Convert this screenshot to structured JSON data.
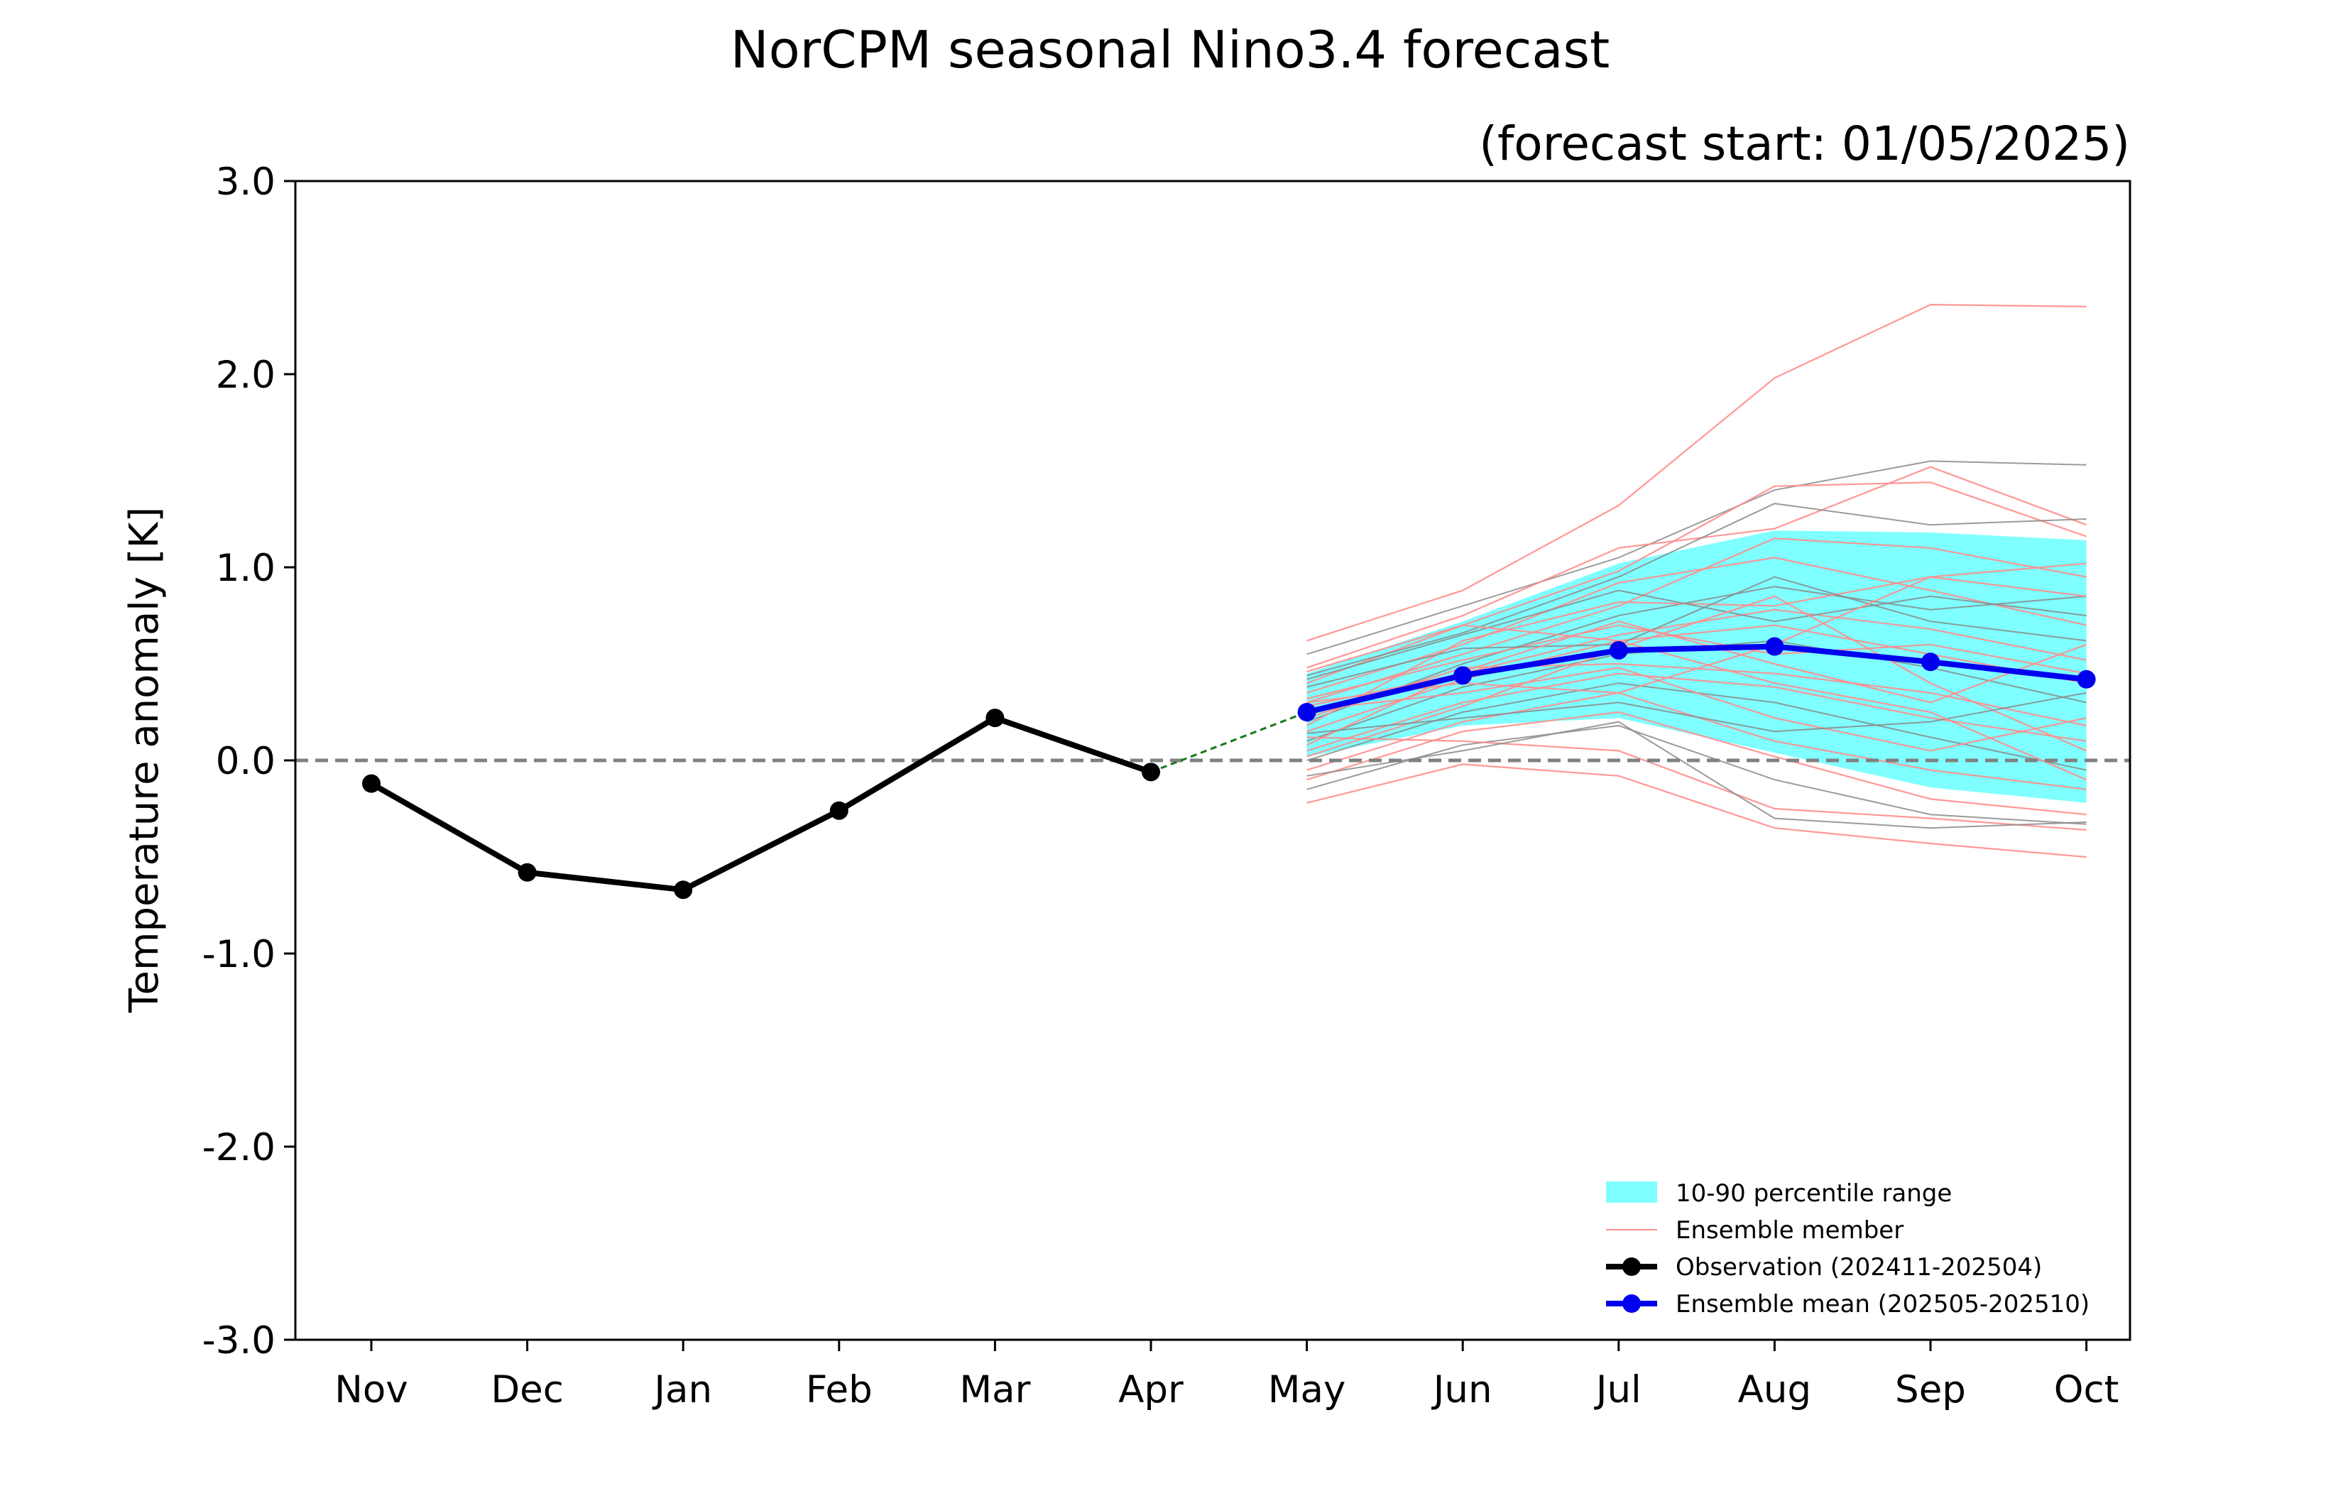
{
  "chart_data": {
    "type": "line",
    "title": "NorCPM seasonal Nino3.4 forecast",
    "subtitle": "(forecast start: 01/05/2025)",
    "xlabel": "",
    "ylabel": "Temperature anomaly [K]",
    "ylim": [
      -3.0,
      3.0
    ],
    "yticks": [
      "3.0",
      "2.0",
      "1.0",
      "0.0",
      "-1.0",
      "-2.0",
      "-3.0"
    ],
    "categories": [
      "Nov",
      "Dec",
      "Jan",
      "Feb",
      "Mar",
      "Apr",
      "May",
      "Jun",
      "Jul",
      "Aug",
      "Sep",
      "Oct"
    ],
    "zero_line": true,
    "observation": {
      "name": "Observation (202411-202504)",
      "color": "#000000",
      "months": [
        "Nov",
        "Dec",
        "Jan",
        "Feb",
        "Mar",
        "Apr"
      ],
      "values": [
        -0.12,
        -0.58,
        -0.67,
        -0.26,
        0.22,
        -0.06
      ]
    },
    "ensemble_mean": {
      "name": "Ensemble mean (202505-202510)",
      "color": "#0000ee",
      "months": [
        "May",
        "Jun",
        "Jul",
        "Aug",
        "Sep",
        "Oct"
      ],
      "values": [
        0.25,
        0.44,
        0.57,
        0.59,
        0.51,
        0.42
      ]
    },
    "connector": {
      "color": "#1a7a1a",
      "from": [
        "Apr",
        -0.06
      ],
      "to": [
        "May",
        0.25
      ]
    },
    "percentile_range": {
      "name": "10-90 percentile range",
      "color": "#7fffff",
      "months": [
        "May",
        "Jun",
        "Jul",
        "Aug",
        "Sep",
        "Oct"
      ],
      "p10": [
        0.02,
        0.18,
        0.22,
        0.04,
        -0.14,
        -0.22
      ],
      "p90": [
        0.45,
        0.72,
        1.02,
        1.19,
        1.18,
        1.14
      ]
    },
    "ensemble_members": {
      "name": "Ensemble member",
      "colors": [
        "#ff8c8c",
        "#8a8a8a"
      ],
      "months": [
        "May",
        "Jun",
        "Jul",
        "Aug",
        "Sep",
        "Oct"
      ],
      "members": [
        [
          0.62,
          0.88,
          1.32,
          1.98,
          2.36,
          2.35
        ],
        [
          0.55,
          0.8,
          1.05,
          1.4,
          1.55,
          1.53
        ],
        [
          0.48,
          0.75,
          1.1,
          1.2,
          1.52,
          1.22
        ],
        [
          0.4,
          0.7,
          0.98,
          1.42,
          1.44,
          1.16
        ],
        [
          0.44,
          0.66,
          0.95,
          1.33,
          1.22,
          1.25
        ],
        [
          0.3,
          0.55,
          0.8,
          1.15,
          1.1,
          0.95
        ],
        [
          0.35,
          0.6,
          0.92,
          1.05,
          0.88,
          0.7
        ],
        [
          0.2,
          0.5,
          0.75,
          0.9,
          0.78,
          0.85
        ],
        [
          0.28,
          0.45,
          0.65,
          0.78,
          0.68,
          0.52
        ],
        [
          0.15,
          0.42,
          0.62,
          0.7,
          0.55,
          0.4
        ],
        [
          0.1,
          0.38,
          0.55,
          0.62,
          0.48,
          0.3
        ],
        [
          0.22,
          0.48,
          0.5,
          0.45,
          0.35,
          0.18
        ],
        [
          0.05,
          0.3,
          0.45,
          0.38,
          0.22,
          0.1
        ],
        [
          0.0,
          0.25,
          0.4,
          0.3,
          0.12,
          -0.05
        ],
        [
          -0.05,
          0.2,
          0.35,
          0.1,
          -0.05,
          -0.15
        ],
        [
          -0.1,
          0.15,
          0.25,
          0.02,
          -0.2,
          -0.28
        ],
        [
          -0.15,
          0.08,
          0.18,
          -0.1,
          -0.28,
          -0.33
        ],
        [
          -0.22,
          -0.02,
          -0.08,
          -0.35,
          -0.43,
          -0.5
        ],
        [
          0.12,
          0.1,
          0.05,
          -0.25,
          -0.3,
          -0.36
        ],
        [
          -0.08,
          0.05,
          0.2,
          -0.3,
          -0.35,
          -0.32
        ],
        [
          0.32,
          0.52,
          0.7,
          0.55,
          0.6,
          0.45
        ],
        [
          0.18,
          0.62,
          0.82,
          0.8,
          0.95,
          1.02
        ],
        [
          0.38,
          0.58,
          0.6,
          0.95,
          0.72,
          0.62
        ],
        [
          0.26,
          0.35,
          0.48,
          0.22,
          0.05,
          0.22
        ],
        [
          0.08,
          0.46,
          0.72,
          0.5,
          0.3,
          0.6
        ],
        [
          0.42,
          0.65,
          0.88,
          0.72,
          0.85,
          0.75
        ],
        [
          0.02,
          0.28,
          0.58,
          0.85,
          0.4,
          0.05
        ],
        [
          0.3,
          0.4,
          0.35,
          0.6,
          0.95,
          0.85
        ],
        [
          0.14,
          0.22,
          0.3,
          0.15,
          0.2,
          0.35
        ],
        [
          0.46,
          0.7,
          0.62,
          0.4,
          0.25,
          -0.1
        ]
      ]
    },
    "legend": {
      "position": "lower-right",
      "entries": [
        "10-90 percentile range",
        "Ensemble member",
        "Observation (202411-202504)",
        "Ensemble mean (202505-202510)"
      ]
    }
  }
}
